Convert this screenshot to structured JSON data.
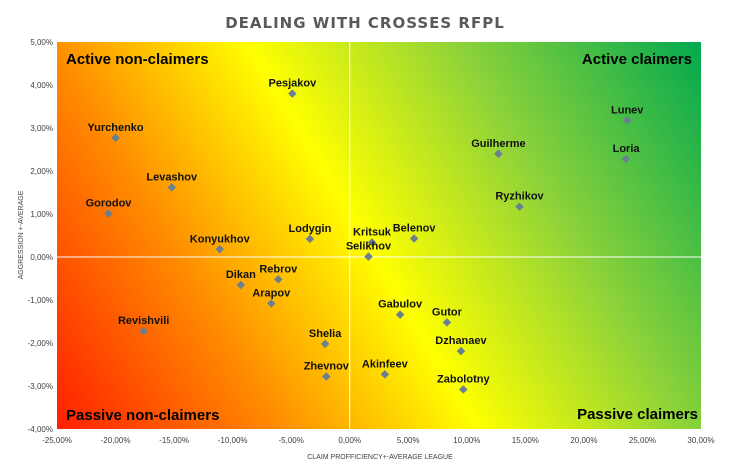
{
  "chart_data": {
    "type": "scatter",
    "title": "DEALING WITH CROSSES RFPL",
    "xlabel": "CLAIM PROFFICIENCY+-AVERAGE LEAGUE",
    "ylabel": "AGGRESSION +-AVERAGE",
    "xlim": [
      -0.25,
      0.3
    ],
    "ylim": [
      -0.04,
      0.05
    ],
    "x_ticks": [
      "-25,00%",
      "-20,00%",
      "-15,00%",
      "-10,00%",
      "-5,00%",
      "0,00%",
      "5,00%",
      "10,00%",
      "15,00%",
      "20,00%",
      "25,00%",
      "30,00%"
    ],
    "y_ticks": [
      "-4,00%",
      "-3,00%",
      "-2,00%",
      "-1,00%",
      "0,00%",
      "1,00%",
      "2,00%",
      "3,00%",
      "4,00%",
      "5,00%"
    ],
    "grid": false,
    "marker_color": "#6b7f91",
    "quadrants": {
      "top_left": "Active non-claimers",
      "top_right": "Active claimers",
      "bottom_left": "Passive non-claimers",
      "bottom_right": "Passive claimers"
    },
    "points": [
      {
        "name": "Pesjakov",
        "x": -0.049,
        "y": 0.038
      },
      {
        "name": "Lunev",
        "x": 0.237,
        "y": 0.0318
      },
      {
        "name": "Yurchenko",
        "x": -0.2,
        "y": 0.0277
      },
      {
        "name": "Guilherme",
        "x": 0.127,
        "y": 0.024
      },
      {
        "name": "Loria",
        "x": 0.236,
        "y": 0.0228
      },
      {
        "name": "Levashov",
        "x": -0.152,
        "y": 0.0162
      },
      {
        "name": "Ryzhikov",
        "x": 0.145,
        "y": 0.0117
      },
      {
        "name": "Gorodov",
        "x": -0.206,
        "y": 0.0101
      },
      {
        "name": "Lodygin",
        "x": -0.034,
        "y": 0.0042
      },
      {
        "name": "Belenov",
        "x": 0.055,
        "y": 0.0043
      },
      {
        "name": "Kritsuk",
        "x": 0.019,
        "y": 0.0034
      },
      {
        "name": "Konyukhov",
        "x": -0.111,
        "y": 0.0018
      },
      {
        "name": "Selikhov",
        "x": 0.016,
        "y": 0.0001
      },
      {
        "name": "Rebrov",
        "x": -0.061,
        "y": -0.0052
      },
      {
        "name": "Dikan",
        "x": -0.093,
        "y": -0.0065
      },
      {
        "name": "Arapov",
        "x": -0.067,
        "y": -0.0108
      },
      {
        "name": "Gabulov",
        "x": 0.043,
        "y": -0.0134
      },
      {
        "name": "Gutor",
        "x": 0.083,
        "y": -0.0152
      },
      {
        "name": "Revishvili",
        "x": -0.176,
        "y": -0.0172
      },
      {
        "name": "Shelia",
        "x": -0.021,
        "y": -0.0202
      },
      {
        "name": "Dzhanaev",
        "x": 0.095,
        "y": -0.0219
      },
      {
        "name": "Akinfeev",
        "x": 0.03,
        "y": -0.0273
      },
      {
        "name": "Zhevnov",
        "x": -0.02,
        "y": -0.0278
      },
      {
        "name": "Zabolotny",
        "x": 0.097,
        "y": -0.0308
      }
    ]
  }
}
